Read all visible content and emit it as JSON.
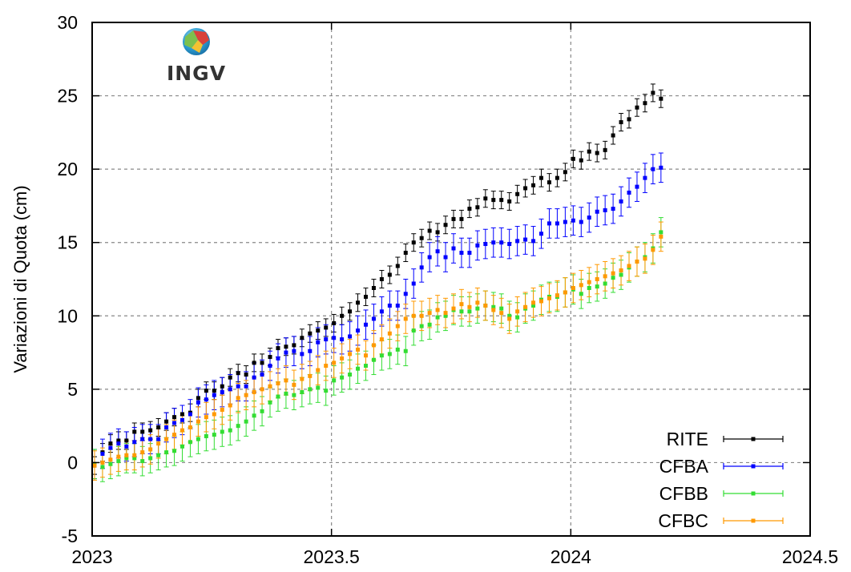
{
  "chart_data": {
    "type": "scatter",
    "ylabel": "Variazioni di Quota (cm)",
    "xlabel": "",
    "xlim": [
      2023,
      2024.5
    ],
    "ylim": [
      -5,
      30
    ],
    "xticks": [
      "2023",
      "2023.5",
      "2024",
      "2024.5"
    ],
    "yticks": [
      "-5",
      "0",
      "5",
      "10",
      "15",
      "20",
      "25",
      "30"
    ],
    "grid": true,
    "error_bars": true,
    "legend_position": "bottom-right",
    "logo_text": "INGV",
    "series": [
      {
        "name": "RITE",
        "color": "#000000",
        "x_start": 2023.005,
        "x_step": 0.016667,
        "values": [
          -0.2,
          0.7,
          1.3,
          1.5,
          1.5,
          2.1,
          2.1,
          2.2,
          2.4,
          2.8,
          3.1,
          3.3,
          3.4,
          4.4,
          4.9,
          4.9,
          5.2,
          5.8,
          6.1,
          6.0,
          6.8,
          6.8,
          7.2,
          7.8,
          7.9,
          8.0,
          8.5,
          8.8,
          9.0,
          9.2,
          9.5,
          10.0,
          10.3,
          10.9,
          11.3,
          11.9,
          12.5,
          12.8,
          13.4,
          14.3,
          15.0,
          15.3,
          15.8,
          15.7,
          16.2,
          16.6,
          16.6,
          17.3,
          17.4,
          18.0,
          17.9,
          17.9,
          17.8,
          18.3,
          18.7,
          18.9,
          19.4,
          19.1,
          19.4,
          19.8,
          20.7,
          20.6,
          21.2,
          21.1,
          21.3,
          22.3,
          23.2,
          23.4,
          24.2,
          24.5,
          25.2,
          24.8
        ],
        "err": 0.6
      },
      {
        "name": "CFBA",
        "color": "#0000ff",
        "x_start": 2023.005,
        "x_step": 0.016667,
        "values": [
          -0.1,
          0.6,
          1.0,
          1.3,
          1.1,
          1.4,
          1.6,
          1.6,
          1.6,
          2.4,
          2.7,
          2.9,
          3.3,
          4.1,
          4.3,
          4.6,
          4.8,
          5.0,
          5.2,
          5.2,
          5.8,
          6.0,
          6.6,
          7.1,
          7.5,
          7.6,
          7.4,
          7.6,
          8.2,
          8.4,
          8.5,
          8.4,
          8.6,
          9.0,
          9.4,
          9.8,
          10.3,
          10.7,
          10.7,
          11.5,
          12.2,
          13.3,
          14.0,
          14.4,
          14.0,
          14.6,
          14.3,
          14.3,
          14.8,
          14.9,
          15.0,
          15.0,
          14.9,
          15.1,
          15.2,
          15.1,
          15.6,
          16.3,
          16.3,
          16.4,
          16.5,
          16.4,
          16.7,
          17.1,
          17.2,
          17.3,
          17.8,
          18.4,
          18.8,
          19.4,
          20.0,
          20.1
        ],
        "err": 1.0
      },
      {
        "name": "CFBB",
        "color": "#33dd33",
        "x_start": 2023.005,
        "x_step": 0.016667,
        "values": [
          -0.1,
          -0.3,
          -0.1,
          0.1,
          0.3,
          0.3,
          0.1,
          0.3,
          0.5,
          0.7,
          0.8,
          1.1,
          1.4,
          1.6,
          1.8,
          1.9,
          2.1,
          2.2,
          2.5,
          2.8,
          3.2,
          3.5,
          4.1,
          4.5,
          4.7,
          4.6,
          4.8,
          5.0,
          5.1,
          4.9,
          5.6,
          5.8,
          6.0,
          6.4,
          6.6,
          7.0,
          7.3,
          7.4,
          7.7,
          7.6,
          9.0,
          9.3,
          9.4,
          9.9,
          10.0,
          10.4,
          10.3,
          10.3,
          10.5,
          10.7,
          10.6,
          10.5,
          10.0,
          9.9,
          10.5,
          10.7,
          11.1,
          11.3,
          11.3,
          11.6,
          11.8,
          11.5,
          11.9,
          12.0,
          12.2,
          12.6,
          12.8,
          13.3,
          13.7,
          14.0,
          14.6,
          15.7
        ],
        "err": 1.0
      },
      {
        "name": "CFBC",
        "color": "#ff9900",
        "x_start": 2023.005,
        "x_step": 0.016667,
        "values": [
          -0.2,
          0.0,
          0.2,
          0.4,
          0.5,
          0.5,
          0.7,
          0.9,
          1.3,
          1.6,
          1.9,
          2.2,
          2.4,
          2.8,
          3.1,
          3.3,
          3.6,
          3.9,
          4.4,
          4.6,
          4.8,
          5.0,
          5.2,
          5.4,
          5.6,
          5.3,
          5.7,
          5.9,
          6.3,
          6.6,
          6.8,
          7.1,
          7.4,
          7.7,
          7.3,
          8.0,
          8.4,
          8.8,
          9.3,
          9.8,
          10.0,
          10.0,
          10.2,
          10.4,
          10.2,
          10.5,
          10.8,
          10.6,
          10.9,
          10.7,
          10.4,
          10.2,
          9.8,
          10.3,
          10.6,
          10.9,
          11.0,
          11.2,
          11.4,
          11.6,
          11.9,
          12.1,
          12.3,
          12.5,
          12.7,
          12.9,
          13.1,
          13.4,
          13.7,
          13.9,
          14.5,
          15.4
        ],
        "err": 1.0
      }
    ]
  }
}
